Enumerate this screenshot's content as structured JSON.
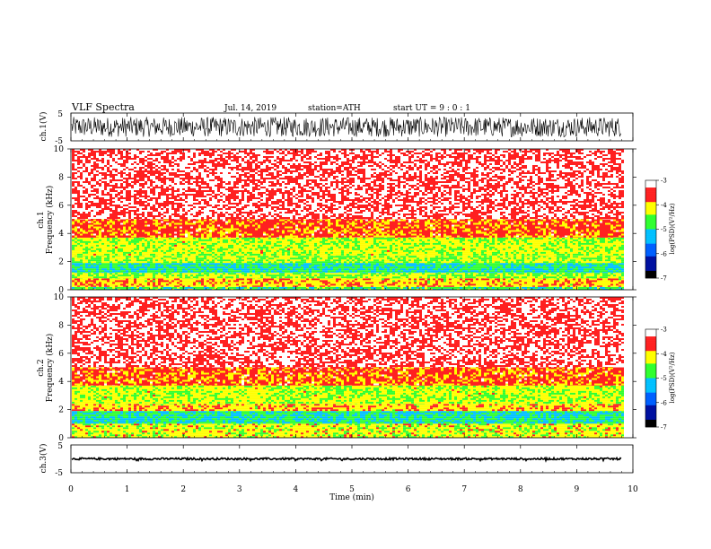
{
  "header": {
    "title": "VLF Spectra",
    "date": "Jul. 14, 2019",
    "station": "station=ATH",
    "start_ut": "start UT = 9 : 0 : 1"
  },
  "colors": {
    "spectrogram_levels": [
      "#000000",
      "#0010a0",
      "#0060ff",
      "#00c0ff",
      "#30ff30",
      "#ffff00",
      "#ff2020",
      "#ffffff"
    ],
    "waveform": "#000000"
  },
  "chart_data": [
    {
      "type": "line",
      "name": "ch1-waveform",
      "ylabel": "ch.1(V)",
      "ylim": [
        -5,
        5
      ],
      "yticks": [
        "5",
        "-5"
      ],
      "x_range": [
        0,
        9.8
      ],
      "description": "dense noisy waveform filling roughly -3.5 to 3.5 V"
    },
    {
      "type": "heatmap",
      "name": "ch1-spectrogram",
      "ylabel": "ch.1 Frequency (kHz)",
      "ylim": [
        0,
        10
      ],
      "yticks": [
        "0",
        "2",
        "4",
        "6",
        "8",
        "10"
      ],
      "x_range": [
        0,
        9.8
      ],
      "bands": [
        {
          "from": 0.0,
          "to": 0.2,
          "level": -4.8
        },
        {
          "from": 0.2,
          "to": 0.8,
          "level": -4.0
        },
        {
          "from": 0.8,
          "to": 1.2,
          "level": -4.4
        },
        {
          "from": 1.2,
          "to": 1.9,
          "level": -5.0
        },
        {
          "from": 1.9,
          "to": 2.4,
          "level": -4.4
        },
        {
          "from": 2.4,
          "to": 3.7,
          "level": -4.3
        },
        {
          "from": 3.7,
          "to": 5.0,
          "level": -3.7
        },
        {
          "from": 5.0,
          "to": 10.0,
          "level": -3.3
        }
      ],
      "colorbar": {
        "label": "log(PSD)(V²/Hz)",
        "range": [
          -7,
          -3
        ],
        "ticks": [
          "-3",
          "-4",
          "-5",
          "-6",
          "-7"
        ]
      }
    },
    {
      "type": "heatmap",
      "name": "ch2-spectrogram",
      "ylabel": "ch.2 Frequency (kHz)",
      "ylim": [
        0,
        10
      ],
      "yticks": [
        "0",
        "2",
        "4",
        "6",
        "8",
        "10"
      ],
      "x_range": [
        0,
        9.8
      ],
      "bands": [
        {
          "from": 0.0,
          "to": 1.0,
          "level": -4.2
        },
        {
          "from": 1.0,
          "to": 1.9,
          "level": -5.0
        },
        {
          "from": 1.9,
          "to": 2.4,
          "level": -4.0
        },
        {
          "from": 2.4,
          "to": 3.7,
          "level": -4.3
        },
        {
          "from": 3.7,
          "to": 5.0,
          "level": -3.7
        },
        {
          "from": 5.0,
          "to": 10.0,
          "level": -3.3
        }
      ],
      "colorbar": {
        "label": "log(PSD)(V²/Hz)",
        "range": [
          -7,
          -3
        ],
        "ticks": [
          "-3",
          "-4",
          "-5",
          "-6",
          "-7"
        ]
      }
    },
    {
      "type": "line",
      "name": "ch3-waveform",
      "ylabel": "ch.3(V)",
      "ylim": [
        -5,
        5
      ],
      "yticks": [
        "5",
        "-5"
      ],
      "x_range": [
        0,
        9.8
      ],
      "description": "near-constant trace around 0 V with brief dropouts"
    }
  ],
  "xaxis": {
    "label": "Time (min)",
    "range": [
      0,
      10
    ],
    "ticks": [
      "0",
      "1",
      "2",
      "3",
      "4",
      "5",
      "6",
      "7",
      "8",
      "9",
      "10"
    ]
  }
}
